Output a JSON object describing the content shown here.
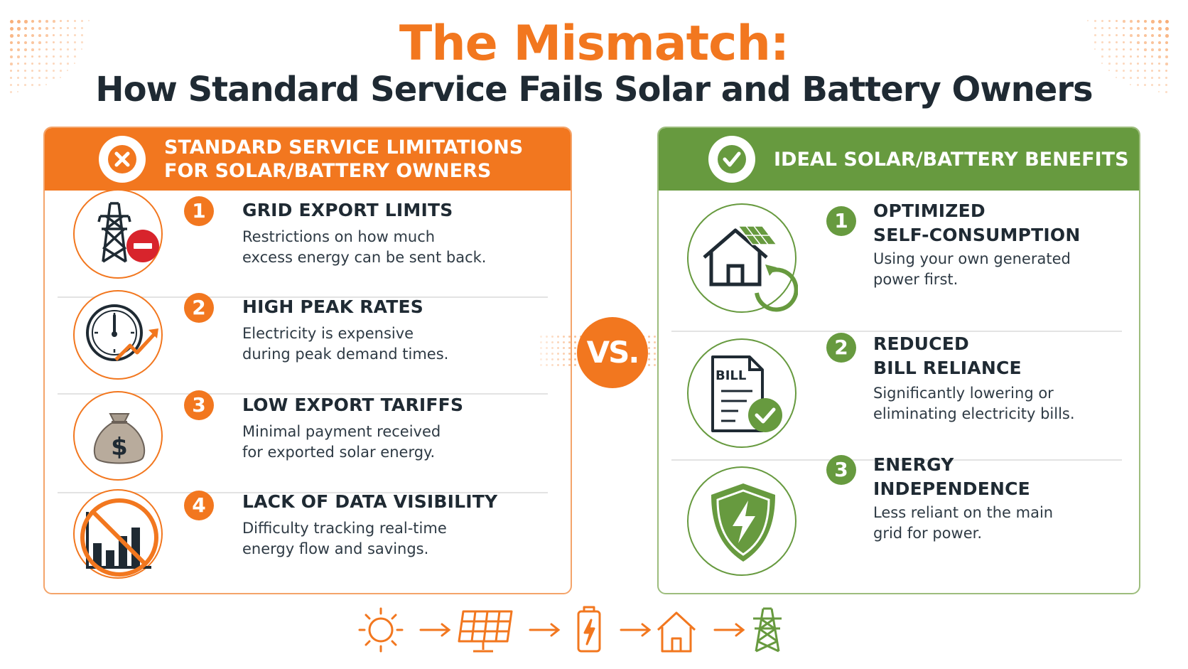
{
  "title": {
    "main": "The Mismatch:",
    "subtitle": "How Standard Service Fails Solar and Battery Owners"
  },
  "left_panel": {
    "header": "STANDARD SERVICE LIMITATIONS\nFOR SOLAR/BATTERY OWNERS",
    "header_icon": "x-icon",
    "items": [
      {
        "number": "1",
        "title": "GRID EXPORT LIMITS",
        "desc": "Restrictions on how much\nexcess energy can be sent back.",
        "icon": "power-tower-stop-icon"
      },
      {
        "number": "2",
        "title": "HIGH PEAK RATES",
        "desc": "Electricity is expensive\nduring peak demand times.",
        "icon": "clock-rising-icon"
      },
      {
        "number": "3",
        "title": "LOW EXPORT TARIFFS",
        "desc": "Minimal payment received\nfor exported solar energy.",
        "icon": "money-bag-icon"
      },
      {
        "number": "4",
        "title": "LACK OF DATA VISIBILITY",
        "desc": "Difficulty tracking real-time\nenergy flow and savings.",
        "icon": "no-data-chart-icon"
      }
    ]
  },
  "vs_label": "VS.",
  "right_panel": {
    "header": "IDEAL SOLAR/BATTERY BENEFITS",
    "header_icon": "check-icon",
    "items": [
      {
        "number": "1",
        "title": "OPTIMIZED\nSELF-CONSUMPTION",
        "desc": "Using your own generated\npower first.",
        "icon": "solar-house-cycle-icon"
      },
      {
        "number": "2",
        "title": "REDUCED\nBILL RELIANCE",
        "desc": "Significantly lowering or\neliminating electricity bills.",
        "icon": "bill-check-icon"
      },
      {
        "number": "3",
        "title": "ENERGY\nINDEPENDENCE",
        "desc": "Less reliant on the main\ngrid for power.",
        "icon": "shield-bolt-icon"
      }
    ]
  },
  "bill_label": "BILL",
  "flow": [
    "sun-icon",
    "solar-panel-icon",
    "battery-icon",
    "house-icon",
    "power-tower-icon"
  ],
  "colors": {
    "orange": "#f2771f",
    "green": "#679a3f",
    "dark": "#1f2a33"
  }
}
